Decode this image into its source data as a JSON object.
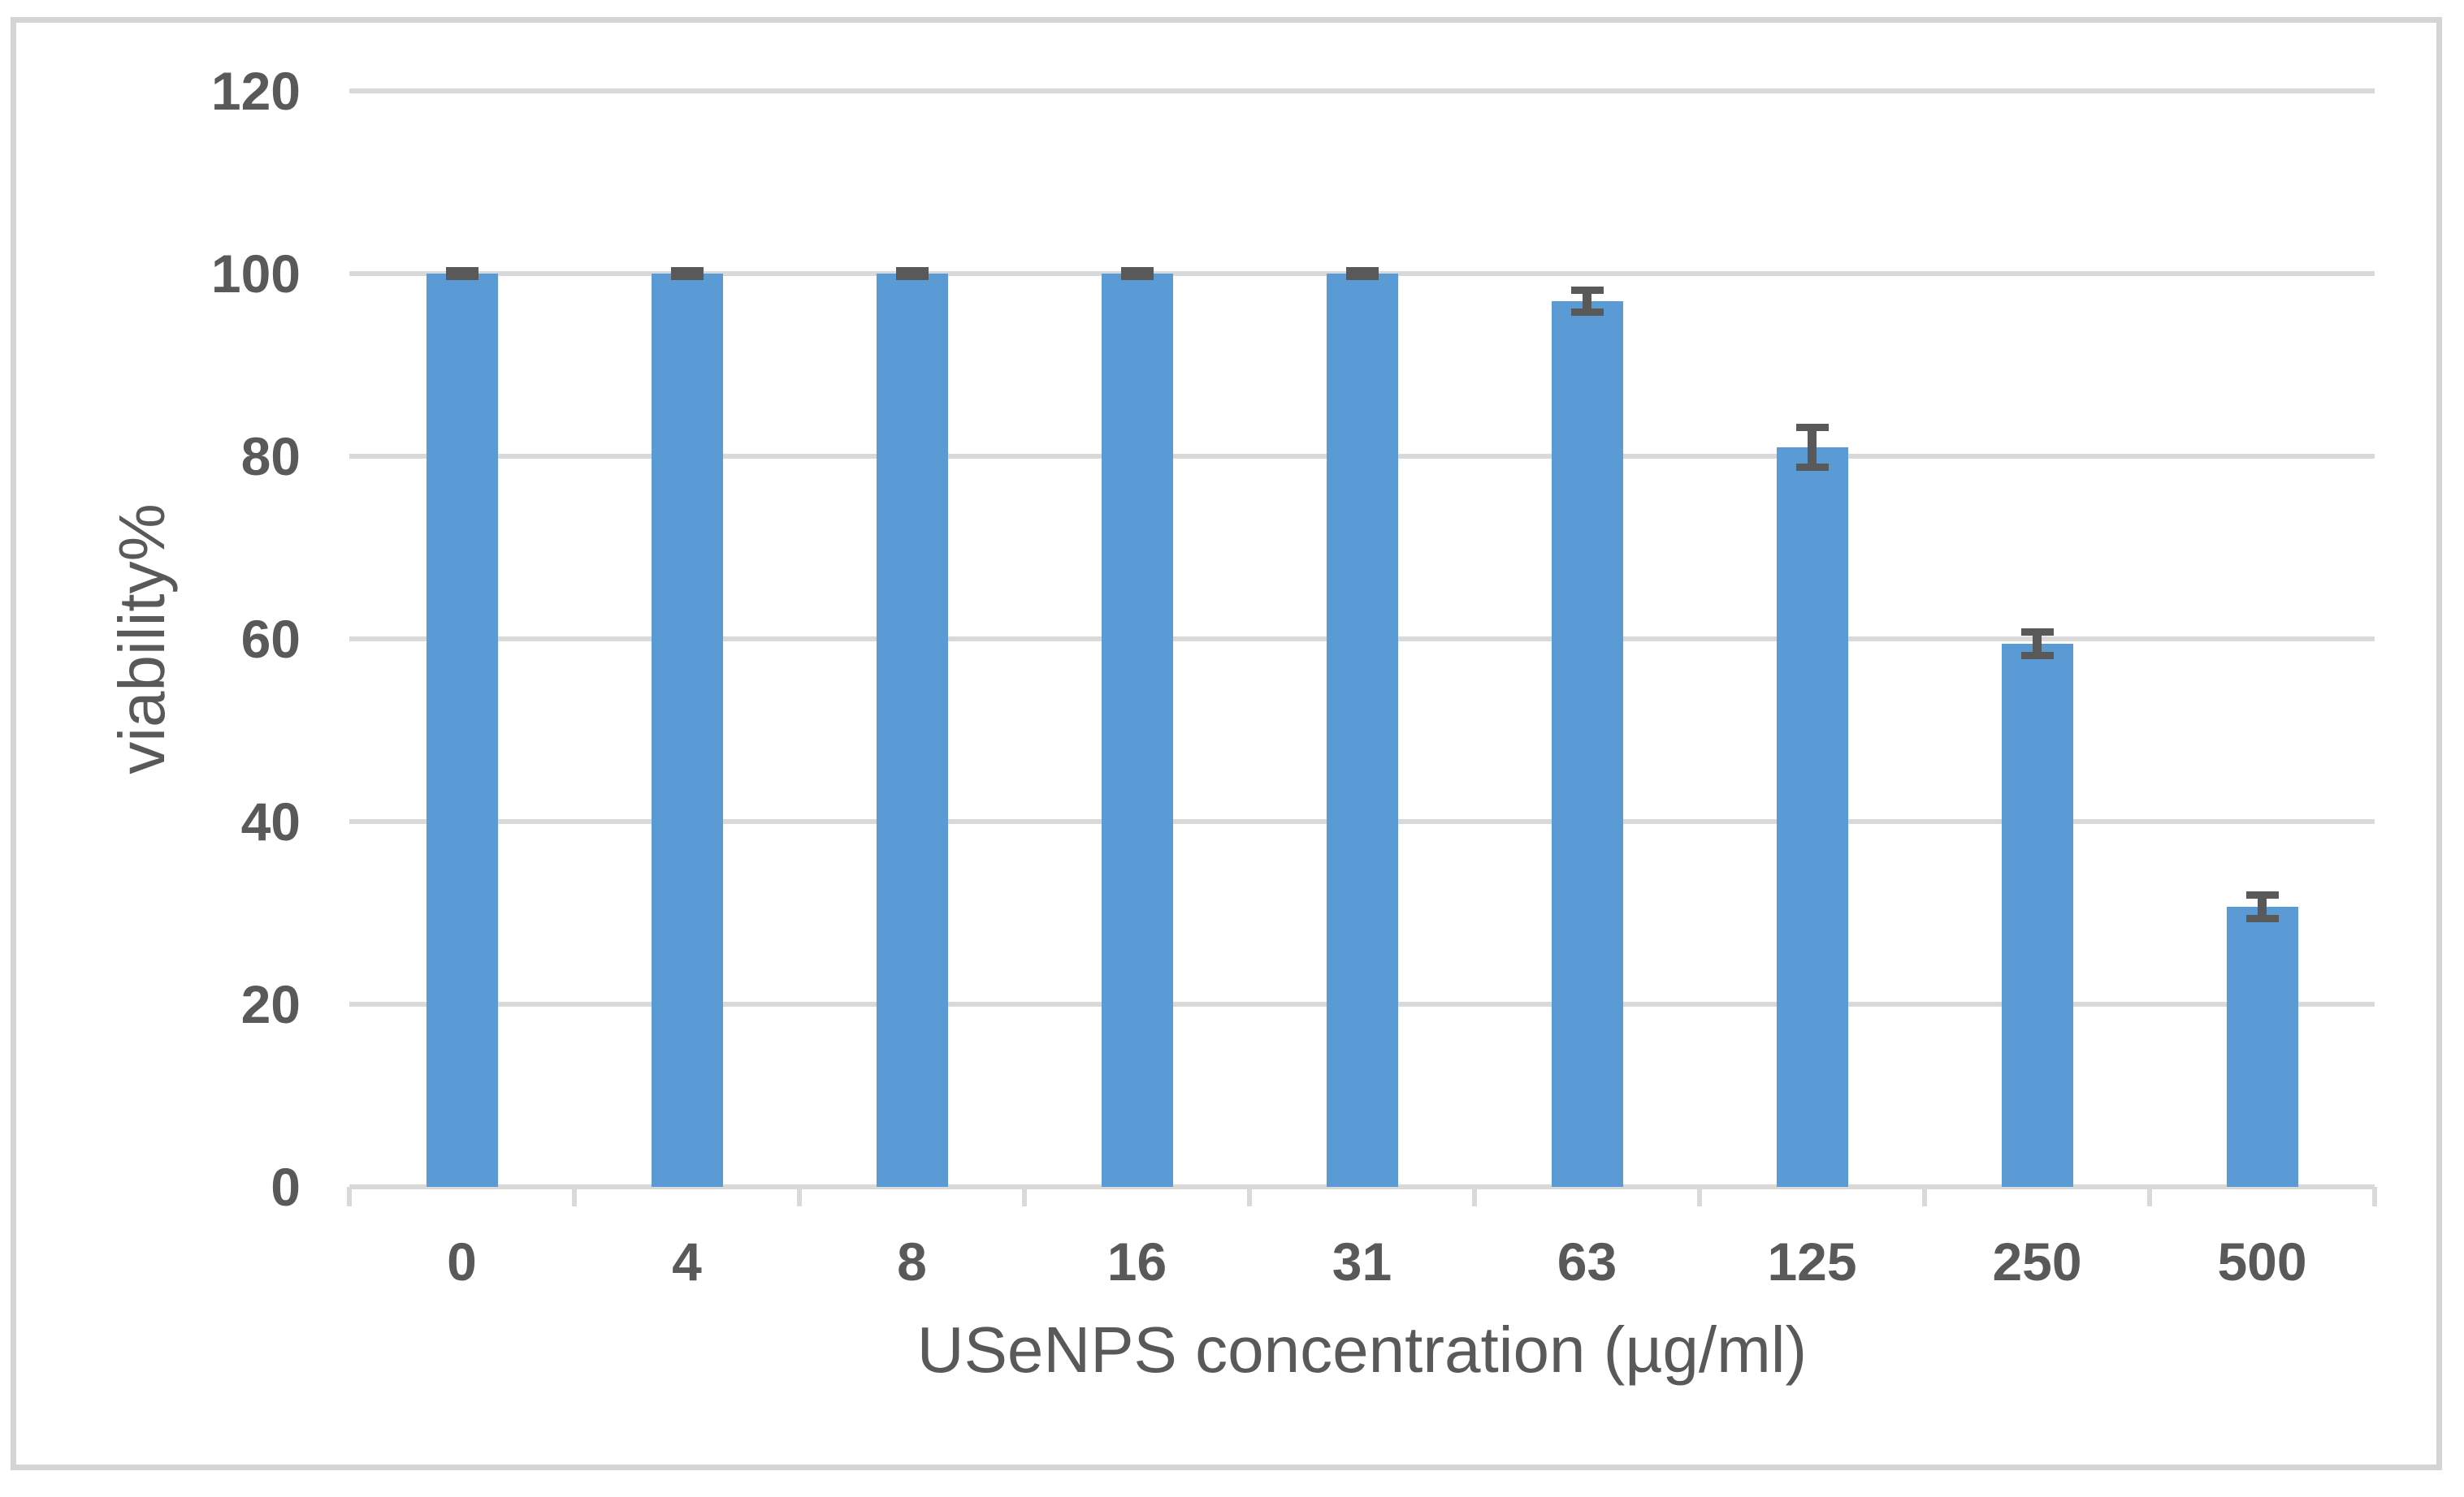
{
  "chart_data": {
    "type": "bar",
    "title": "",
    "categories": [
      "0",
      "4",
      "8",
      "16",
      "31",
      "63",
      "125",
      "250",
      "500"
    ],
    "values": [
      100,
      100,
      100,
      100,
      100,
      97,
      81,
      59.5,
      30.7
    ],
    "errors": [
      0.3,
      0.3,
      0.3,
      0.3,
      0.3,
      1.2,
      2.2,
      1.3,
      1.3
    ],
    "xlabel": "USeNPS concentration (µg/ml)",
    "ylabel": "viability%",
    "ylim": [
      0,
      120
    ],
    "yticks": [
      0,
      20,
      40,
      60,
      80,
      100,
      120
    ],
    "grid": "horizontal-major",
    "legend": "none",
    "colors": {
      "bar": "#5B9BD5",
      "error_bar": "#595959",
      "gridline": "#D9D9D9",
      "axis_text": "#595959",
      "frame_border": "#D4D4D4",
      "background": "#FFFFFF"
    }
  }
}
